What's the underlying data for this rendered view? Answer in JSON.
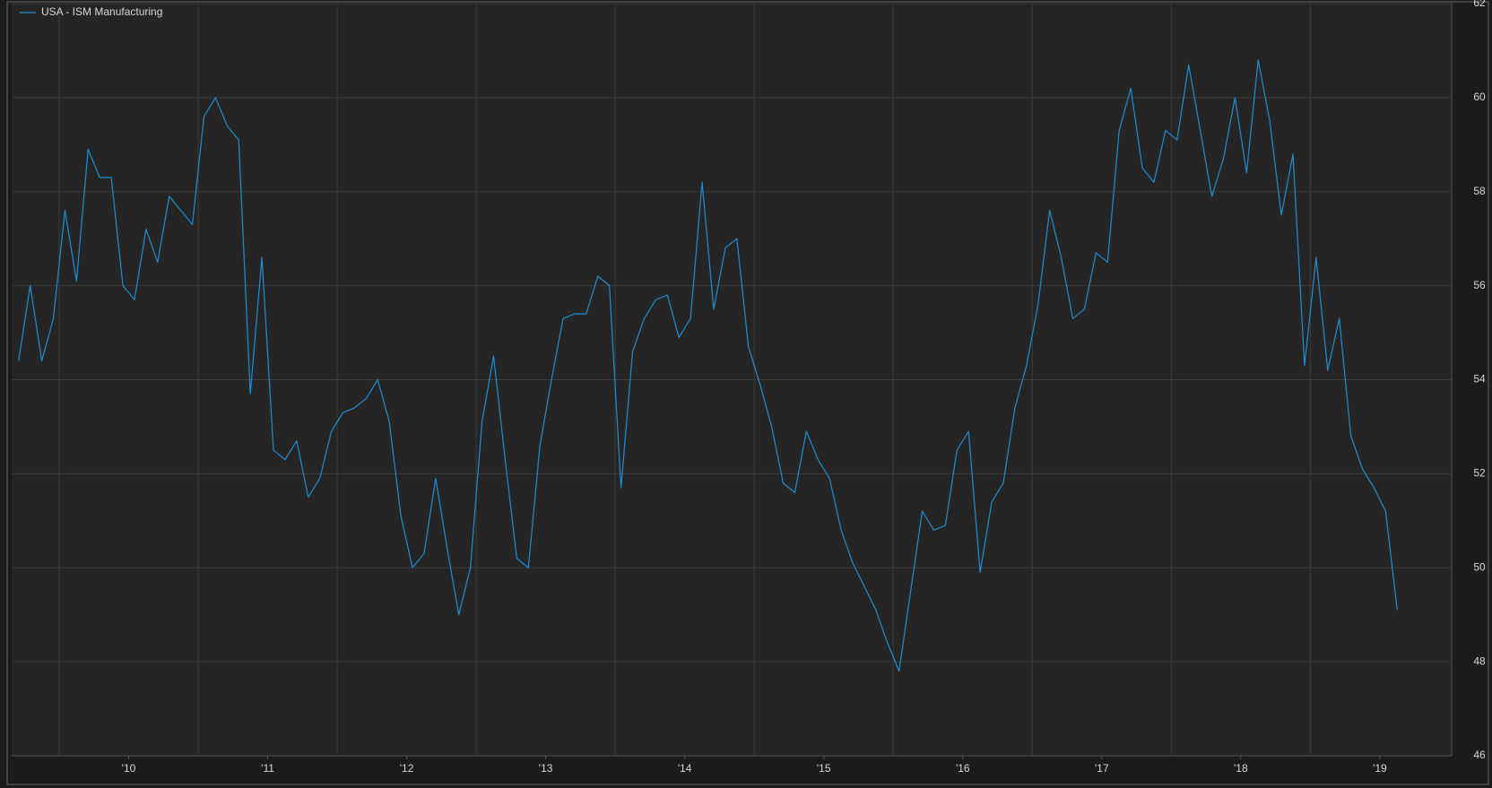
{
  "chart_data": {
    "type": "line",
    "series": [
      {
        "name": "USA - ISM Manufacturing",
        "color": "#1f8fd4",
        "values": [
          54.4,
          56.0,
          54.4,
          55.3,
          57.6,
          56.1,
          58.9,
          58.3,
          58.3,
          56.0,
          55.7,
          57.2,
          56.5,
          57.9,
          57.6,
          57.3,
          59.6,
          60.0,
          59.4,
          59.1,
          53.7,
          56.6,
          52.5,
          52.3,
          52.7,
          51.5,
          51.9,
          52.9,
          53.3,
          53.4,
          53.6,
          54.0,
          53.1,
          51.1,
          50.0,
          50.3,
          51.9,
          50.4,
          49.0,
          50.0,
          53.1,
          54.5,
          52.3,
          50.2,
          50.0,
          52.6,
          54.0,
          55.3,
          55.4,
          55.4,
          56.2,
          56.0,
          51.7,
          54.6,
          55.3,
          55.7,
          55.8,
          54.9,
          55.3,
          58.2,
          55.5,
          56.8,
          57.0,
          54.7,
          53.9,
          53.0,
          51.8,
          51.6,
          52.9,
          52.3,
          51.9,
          50.8,
          50.1,
          49.6,
          49.1,
          48.4,
          47.8,
          49.5,
          51.2,
          50.8,
          50.9,
          52.5,
          52.9,
          49.9,
          51.4,
          51.8,
          53.4,
          54.3,
          55.6,
          57.6,
          56.6,
          55.3,
          55.5,
          56.7,
          56.5,
          59.3,
          60.2,
          58.5,
          58.2,
          59.3,
          59.1,
          60.7,
          59.3,
          57.9,
          58.7,
          60.0,
          58.4,
          60.8,
          59.5,
          57.5,
          58.8,
          54.3,
          56.6,
          54.2,
          55.3,
          52.8,
          52.1,
          51.7,
          51.2,
          49.1
        ]
      }
    ],
    "xlim": [
      -0.6,
      123.7
    ],
    "xticks": [
      {
        "value": 9.5,
        "label": "'10"
      },
      {
        "value": 21.5,
        "label": "'11"
      },
      {
        "value": 33.5,
        "label": "'12"
      },
      {
        "value": 45.5,
        "label": "'13"
      },
      {
        "value": 57.5,
        "label": "'14"
      },
      {
        "value": 69.5,
        "label": "'15"
      },
      {
        "value": 81.5,
        "label": "'16"
      },
      {
        "value": 93.5,
        "label": "'17"
      },
      {
        "value": 105.5,
        "label": "'18"
      },
      {
        "value": 117.5,
        "label": "'19"
      }
    ],
    "ylim": [
      46,
      62
    ],
    "yticks": [
      46,
      48,
      50,
      52,
      54,
      56,
      58,
      60,
      62
    ],
    "grid": true,
    "legend": "top-left"
  }
}
